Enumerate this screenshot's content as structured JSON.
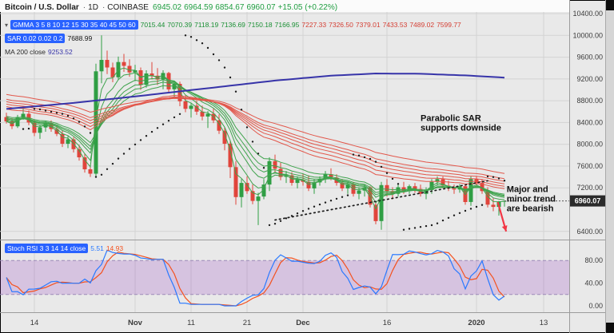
{
  "header": {
    "symbol": "Bitcoin / U.S. Dollar",
    "sep": "·",
    "interval": "1D",
    "exchange": "COINBASE",
    "ohlc": {
      "open": "6945.02",
      "high": "6964.59",
      "low": "6854.67",
      "close": "6960.07",
      "change": "+15.05 (+0.22%)"
    }
  },
  "legend": {
    "collapse_icon": "▾",
    "gmma": {
      "label": "GMMA 3 5 8 10 12 15 30 35 40 45 50 60",
      "values_short": [
        "7015.44",
        "7070.39",
        "7118.19",
        "7136.69",
        "7150.18",
        "7166.95"
      ],
      "values_long": [
        "7227.33",
        "7326.50",
        "7379.01",
        "7433.53",
        "7489.02",
        "7599.77"
      ]
    },
    "sar": {
      "label": "SAR 0.02 0.02 0.2",
      "value": "7688.99"
    },
    "ma": {
      "label": "MA 200 close",
      "value": "9253.52"
    },
    "stoch": {
      "label": "Stoch RSI 3 3 14 14 close",
      "k_value": "5.51",
      "d_value": "14.93"
    }
  },
  "axes": {
    "price_ticks": [
      {
        "label": "10400.00",
        "v": 10400
      },
      {
        "label": "10000.00",
        "v": 10000
      },
      {
        "label": "9600.00",
        "v": 9600
      },
      {
        "label": "9200.00",
        "v": 9200
      },
      {
        "label": "8800.00",
        "v": 8800
      },
      {
        "label": "8400.00",
        "v": 8400
      },
      {
        "label": "8000.00",
        "v": 8000
      },
      {
        "label": "7600.00",
        "v": 7600
      },
      {
        "label": "7200.00",
        "v": 7200
      },
      {
        "label": "6400.00",
        "v": 6400
      }
    ],
    "price_badge": {
      "label": "6960.07",
      "v": 6960.07
    },
    "sub_ticks": [
      {
        "label": "80.00",
        "v": 80
      },
      {
        "label": "40.00",
        "v": 40
      },
      {
        "label": "0.00",
        "v": 0
      }
    ],
    "time_ticks": [
      {
        "label": "14",
        "i": 5,
        "bold": false
      },
      {
        "label": "Nov",
        "i": 23,
        "bold": true
      },
      {
        "label": "11",
        "i": 33,
        "bold": false
      },
      {
        "label": "21",
        "i": 43,
        "bold": false
      },
      {
        "label": "Dec",
        "i": 53,
        "bold": true
      },
      {
        "label": "16",
        "i": 68,
        "bold": false
      },
      {
        "label": "2020",
        "i": 84,
        "bold": true
      },
      {
        "label": "13",
        "i": 96,
        "bold": false
      }
    ]
  },
  "annotations": {
    "notes": [
      {
        "lines": [
          "Parabolic SAR",
          "supports downside"
        ],
        "bar": 74,
        "price": 8430
      },
      {
        "lines": [
          "Major and",
          "minor trend",
          "are bearish"
        ],
        "bar": 89.4,
        "price": 7120
      }
    ],
    "arrow": {
      "from_bar": 87.8,
      "from_price": 6940,
      "to_bar": 89.3,
      "to_price": 6400
    },
    "trendline": {
      "from_bar": 48,
      "from_price": 6610,
      "to_bar": 86,
      "to_price": 7330
    }
  },
  "chart_data": {
    "type": "candlestick",
    "title": "Bitcoin / U.S. Dollar, 1D, COINBASE",
    "ylim": [
      6250,
      10650
    ],
    "sub_ylim": [
      0,
      100
    ],
    "candles_ohlc": [
      [
        8500,
        8580,
        8380,
        8420
      ],
      [
        8420,
        8480,
        8280,
        8330
      ],
      [
        8330,
        8540,
        8300,
        8500
      ],
      [
        8500,
        8650,
        8450,
        8560
      ],
      [
        8560,
        8620,
        8350,
        8400
      ],
      [
        8400,
        8450,
        8150,
        8210
      ],
      [
        8210,
        8360,
        8100,
        8310
      ],
      [
        8310,
        8430,
        8230,
        8390
      ],
      [
        8390,
        8440,
        8230,
        8280
      ],
      [
        8280,
        8330,
        8150,
        8190
      ],
      [
        8190,
        8260,
        7950,
        8010
      ],
      [
        8010,
        8150,
        7930,
        8090
      ],
      [
        8090,
        8130,
        7850,
        7910
      ],
      [
        7910,
        7990,
        7700,
        7760
      ],
      [
        7760,
        7830,
        7480,
        7540
      ],
      [
        7540,
        7620,
        7400,
        7460
      ],
      [
        7460,
        9480,
        7410,
        9340
      ],
      [
        9340,
        10000,
        9120,
        9550
      ],
      [
        9550,
        9720,
        9290,
        9410
      ],
      [
        9410,
        9500,
        9140,
        9230
      ],
      [
        9230,
        9610,
        9180,
        9510
      ],
      [
        9510,
        9660,
        9330,
        9440
      ],
      [
        9440,
        9560,
        9240,
        9320
      ],
      [
        9320,
        9460,
        9160,
        9360
      ],
      [
        9360,
        9410,
        9000,
        9090
      ],
      [
        9090,
        9360,
        9040,
        9300
      ],
      [
        9300,
        9510,
        9190,
        9260
      ],
      [
        9260,
        9400,
        9090,
        9190
      ],
      [
        9190,
        9360,
        9010,
        9310
      ],
      [
        9310,
        9330,
        8950,
        9010
      ],
      [
        9010,
        9160,
        8860,
        9110
      ],
      [
        9110,
        9150,
        8700,
        8790
      ],
      [
        8790,
        8900,
        8590,
        8650
      ],
      [
        8650,
        8760,
        8490,
        8710
      ],
      [
        8710,
        8800,
        8540,
        8600
      ],
      [
        8600,
        8710,
        8440,
        8510
      ],
      [
        8510,
        8610,
        8300,
        8560
      ],
      [
        8560,
        8660,
        8390,
        8440
      ],
      [
        8440,
        8550,
        8190,
        8250
      ],
      [
        8250,
        8310,
        7890,
        8010
      ],
      [
        8010,
        8060,
        7380,
        7580
      ],
      [
        7580,
        7690,
        6890,
        7030
      ],
      [
        7030,
        7360,
        6840,
        7290
      ],
      [
        7290,
        7410,
        7090,
        7140
      ],
      [
        7140,
        7260,
        6900,
        6960
      ],
      [
        6960,
        7110,
        6515,
        7040
      ],
      [
        7040,
        7360,
        6990,
        7260
      ],
      [
        7260,
        7760,
        7140,
        7690
      ],
      [
        7690,
        7810,
        7490,
        7550
      ],
      [
        7550,
        7660,
        7340,
        7400
      ],
      [
        7400,
        7510,
        7290,
        7430
      ],
      [
        7430,
        7490,
        7240,
        7290
      ],
      [
        7290,
        7410,
        7190,
        7350
      ],
      [
        7350,
        7460,
        7240,
        7310
      ],
      [
        7310,
        7430,
        7140,
        7190
      ],
      [
        7190,
        7360,
        7090,
        7300
      ],
      [
        7300,
        7410,
        7240,
        7360
      ],
      [
        7360,
        7510,
        7290,
        7450
      ],
      [
        7450,
        7560,
        7340,
        7390
      ],
      [
        7390,
        7450,
        7240,
        7290
      ],
      [
        7290,
        7360,
        7140,
        7190
      ],
      [
        7190,
        7310,
        7090,
        7260
      ],
      [
        7260,
        7310,
        7040,
        7090
      ],
      [
        7090,
        7210,
        6990,
        7150
      ],
      [
        7150,
        7260,
        7040,
        7210
      ],
      [
        7210,
        7230,
        6840,
        6890
      ],
      [
        6890,
        6950,
        6530,
        6590
      ],
      [
        6590,
        7310,
        6430,
        7250
      ],
      [
        7250,
        7360,
        7040,
        7140
      ],
      [
        7140,
        7210,
        6990,
        7090
      ],
      [
        7090,
        7260,
        7040,
        7210
      ],
      [
        7210,
        7310,
        7090,
        7140
      ],
      [
        7140,
        7260,
        7090,
        7230
      ],
      [
        7230,
        7290,
        7110,
        7180
      ],
      [
        7180,
        7260,
        7040,
        7090
      ],
      [
        7090,
        7210,
        6990,
        7160
      ],
      [
        7160,
        7360,
        7090,
        7310
      ],
      [
        7310,
        7410,
        7240,
        7360
      ],
      [
        7360,
        7410,
        7190,
        7240
      ],
      [
        7240,
        7330,
        7140,
        7190
      ],
      [
        7190,
        7260,
        7090,
        7170
      ],
      [
        7170,
        7270,
        7110,
        7230
      ],
      [
        7230,
        7260,
        6890,
        6940
      ],
      [
        6940,
        7410,
        6870,
        7360
      ],
      [
        7360,
        7410,
        7240,
        7290
      ],
      [
        7290,
        7360,
        7090,
        7140
      ],
      [
        7140,
        7210,
        6840,
        6890
      ],
      [
        6890,
        7010,
        6770,
        6850
      ],
      [
        6850,
        6960,
        6690,
        6945
      ],
      [
        6945.02,
        6964.59,
        6854.67,
        6960.07
      ]
    ],
    "overlays": {
      "gmma_periods_short": [
        3,
        5,
        8,
        10,
        12,
        15
      ],
      "gmma_periods_long": [
        30,
        35,
        40,
        45,
        50,
        60
      ],
      "sar_params": [
        0.02,
        0.02,
        0.2
      ],
      "ma200_points": [
        [
          0,
          8650
        ],
        [
          12,
          8760
        ],
        [
          24,
          8890
        ],
        [
          36,
          9030
        ],
        [
          48,
          9170
        ],
        [
          58,
          9260
        ],
        [
          66,
          9300
        ],
        [
          74,
          9295
        ],
        [
          82,
          9265
        ],
        [
          89,
          9225
        ]
      ],
      "last_price": 6960.07
    },
    "sub_indicator": {
      "name": "Stoch RSI",
      "params": [
        3,
        3,
        14,
        14
      ],
      "band": [
        20,
        80
      ]
    },
    "colors": {
      "up": "#2f9e44",
      "down": "#e0453c",
      "gmma_short": "#3fa34d",
      "gmma_long": "#e2574b",
      "ma200": "#3734a9",
      "sar": "#1c1c1c",
      "stoch_k": "#2979ff",
      "stoch_d": "#f4511e",
      "band_fill": "rgba(145,60,190,0.22)",
      "band_line": "#9b8ab8",
      "grid": "#d3d3d3",
      "axis_text": "#3a3a3a",
      "badge_bg": "#2b2b2b",
      "badge_text": "#ffffff",
      "accent": "#2962ff",
      "annotation": "#101010",
      "arrow": "#f23645",
      "trendline": "#1a1a1a"
    }
  }
}
